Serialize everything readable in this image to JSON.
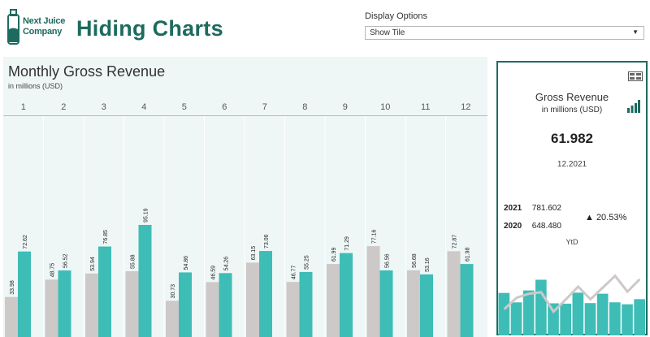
{
  "header": {
    "logo_line1": "Next Juice",
    "logo_line2": "Company",
    "title": "Hiding Charts"
  },
  "display_options": {
    "label": "Display Options",
    "selected": "Show Tile"
  },
  "colors": {
    "brand": "#1c6b5e",
    "series_2020": "#cdc9c8",
    "series_2021": "#3dbdb6",
    "panel_bg": "#eef7f6"
  },
  "chart": {
    "title": "Monthly Gross Revenue",
    "subtitle": "in millions (USD)"
  },
  "chart_data": {
    "type": "bar",
    "categories": [
      "1",
      "2",
      "3",
      "4",
      "5",
      "6",
      "7",
      "8",
      "9",
      "10",
      "11",
      "12"
    ],
    "series": [
      {
        "values": [
          33.98,
          48.75,
          53.94,
          55.88,
          30.73,
          46.59,
          63.15,
          46.77,
          61.99,
          77.16,
          56.68,
          72.87
        ]
      },
      {
        "values": [
          72.62,
          56.52,
          76.85,
          95.19,
          54.86,
          54.26,
          73.06,
          55.25,
          71.29,
          56.56,
          53.16,
          61.98
        ]
      }
    ],
    "ylim": [
      0,
      110
    ]
  },
  "tile": {
    "title": "Gross Revenue",
    "subtitle": "in millions (USD)",
    "value": "61.982",
    "period": "12.2021",
    "ytd_rows": [
      {
        "year": "2021",
        "value": "781.602"
      },
      {
        "year": "2020",
        "value": "648.480"
      }
    ],
    "change": "▲ 20.53%",
    "ytd_label": "YtD",
    "icons": [
      "table-icon",
      "bar-chart-icon"
    ]
  }
}
